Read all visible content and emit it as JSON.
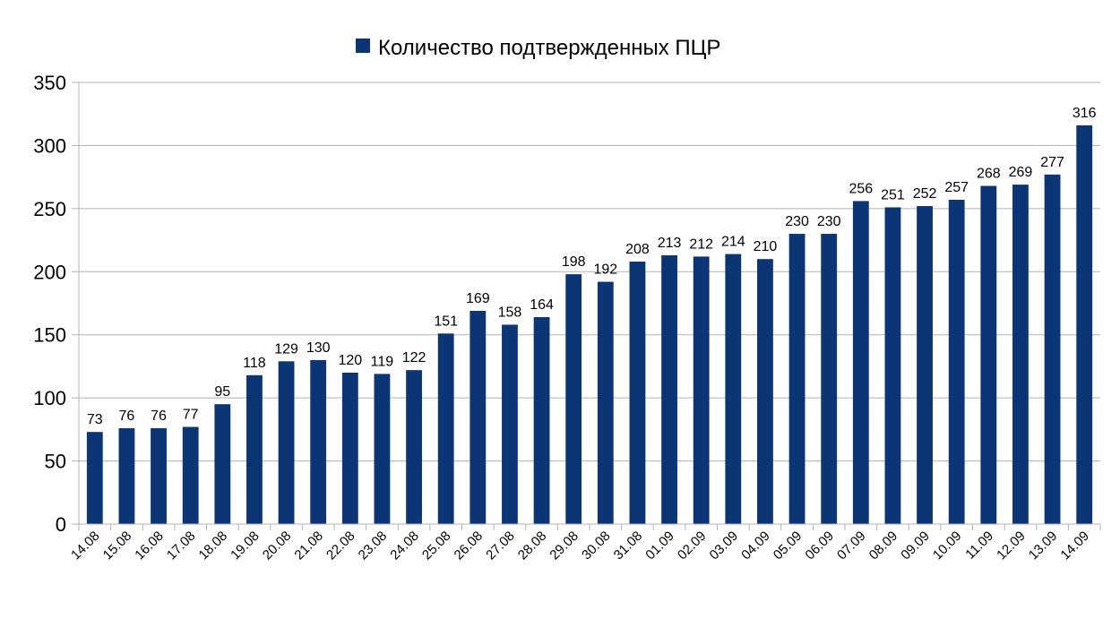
{
  "chart_data": {
    "type": "bar",
    "title": "",
    "xlabel": "",
    "ylabel": "",
    "ylim": [
      0,
      350
    ],
    "yticks": [
      0,
      50,
      100,
      150,
      200,
      250,
      300,
      350
    ],
    "grid": true,
    "legend_position": "top",
    "categories": [
      "14.08",
      "15.08",
      "16.08",
      "17.08",
      "18.08",
      "19.08",
      "20.08",
      "21.08",
      "22.08",
      "23.08",
      "24.08",
      "25.08",
      "26.08",
      "27.08",
      "28.08",
      "29.08",
      "30.08",
      "31.08",
      "01.09",
      "02.09",
      "03.09",
      "04.09",
      "05.09",
      "06.09",
      "07.09",
      "08.09",
      "09.09",
      "10.09",
      "11.09",
      "12.09",
      "13.09",
      "14.09"
    ],
    "series": [
      {
        "name": "Количество подтвержденных ПЦР",
        "color": "#0c3575",
        "values": [
          73,
          76,
          76,
          77,
          95,
          118,
          129,
          130,
          120,
          119,
          122,
          151,
          169,
          158,
          164,
          198,
          192,
          208,
          213,
          212,
          214,
          210,
          230,
          230,
          256,
          251,
          252,
          257,
          268,
          269,
          277,
          316
        ]
      }
    ]
  }
}
